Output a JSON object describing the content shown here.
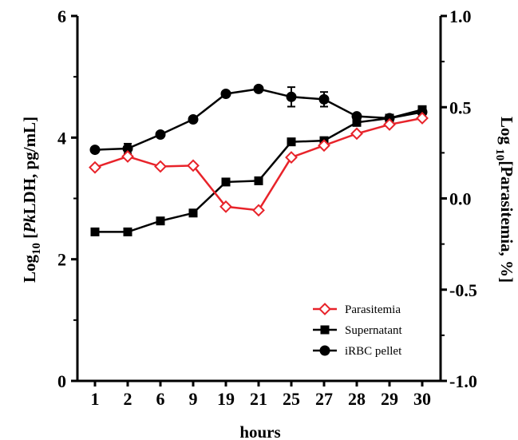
{
  "chart_data": {
    "type": "line",
    "categories": [
      "1",
      "2",
      "6",
      "9",
      "19",
      "21",
      "25",
      "27",
      "28",
      "29",
      "30"
    ],
    "xlabel": "hours",
    "ylabel": {
      "prefix": "Log",
      "sub": "10",
      "bracket_open": " [",
      "italic": "Pk",
      "rest": "LDH, pg/mL]"
    },
    "y2label": {
      "prefix": "Log ",
      "sub": "10",
      "rest": "[Parasitemia, %]"
    },
    "ylim": [
      0,
      6
    ],
    "yticks": [
      "0",
      "2",
      "4",
      "6"
    ],
    "y2lim": [
      -1.0,
      1.0
    ],
    "y2ticks": [
      "-1.0",
      "-0.5",
      "0.0",
      "0.5",
      "1.0"
    ],
    "legend_position": "bottom-right",
    "series": [
      {
        "name": "Parasitemia",
        "axis": "right",
        "color": "#e8232a",
        "marker": "open-diamond",
        "values": [
          0.17,
          0.23,
          0.175,
          0.18,
          -0.045,
          -0.065,
          0.225,
          0.29,
          0.355,
          0.405,
          0.44
        ]
      },
      {
        "name": "Supernatant",
        "axis": "left",
        "color": "#000000",
        "marker": "square",
        "values": [
          2.45,
          2.45,
          2.63,
          2.76,
          3.27,
          3.29,
          3.93,
          3.95,
          4.25,
          4.32,
          4.46
        ]
      },
      {
        "name": "iRBC pellet",
        "axis": "left",
        "color": "#000000",
        "marker": "circle",
        "values": [
          3.8,
          3.82,
          4.05,
          4.3,
          4.72,
          4.8,
          4.67,
          4.63,
          4.35,
          4.32,
          4.42
        ],
        "errors": [
          0,
          0.08,
          0,
          0,
          0,
          0,
          0.16,
          0.12,
          0,
          0,
          0
        ]
      }
    ]
  }
}
